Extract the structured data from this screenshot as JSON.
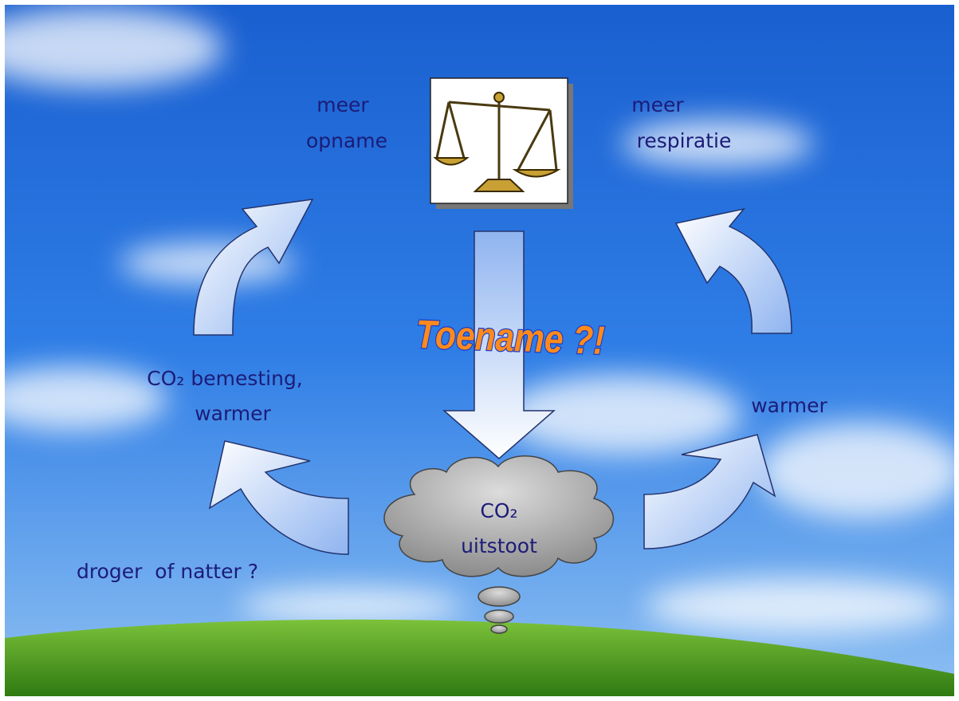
{
  "labels": {
    "top_left": [
      "meer",
      "opname"
    ],
    "top_right": [
      "meer",
      "respiratie"
    ],
    "mid_left": [
      "CO₂ bemesting,",
      "warmer"
    ],
    "mid_right": "warmer",
    "bottom_left": "droger  of natter ?",
    "cloud": [
      "CO₂",
      "uitstoot"
    ],
    "banner": "Toename ?!"
  }
}
